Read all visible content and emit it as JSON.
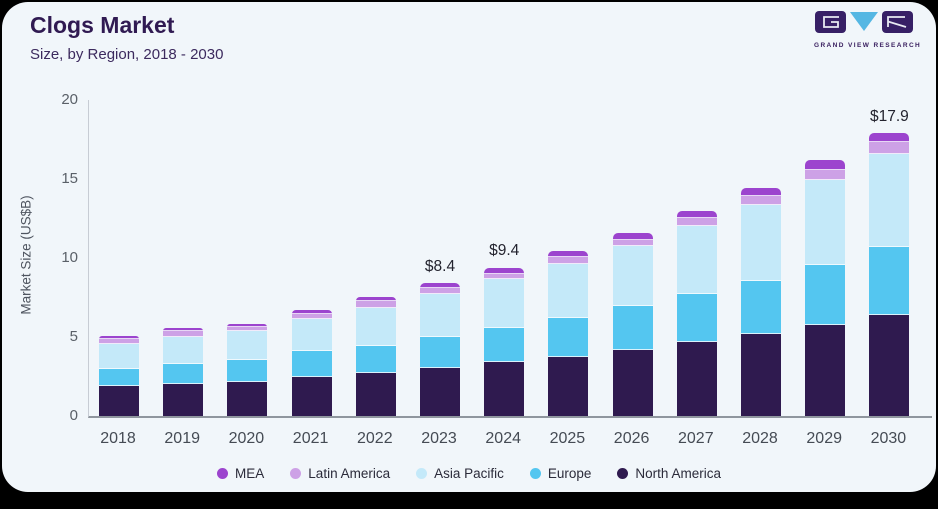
{
  "header": {
    "title": "Clogs Market",
    "subtitle": "Size, by Region, 2018 - 2030"
  },
  "logo": {
    "caption": "GRAND VIEW RESEARCH",
    "tile_color": "#372066",
    "triangle_color": "#55b7e3"
  },
  "colors": {
    "card_background": "#f1f6fa",
    "frame_background": "#000000",
    "title_text": "#301a52",
    "axis_line": "#c7ccd4",
    "baseline": "#8f969e",
    "tick_text": "#5a6068",
    "year_text": "#454b54",
    "annotation_text": "#23232e",
    "legend_text": "#2b2b3a"
  },
  "chart_data": {
    "type": "bar",
    "stacked": true,
    "title": "Clogs Market",
    "subtitle": "Size, by Region, 2018 - 2030",
    "xlabel": "",
    "ylabel": "Market Size (US$B)",
    "ylim": [
      0,
      20
    ],
    "yticks": [
      0,
      5,
      10,
      15,
      20
    ],
    "grid": false,
    "legend_position": "bottom-center",
    "categories": [
      "2018",
      "2019",
      "2020",
      "2021",
      "2022",
      "2023",
      "2024",
      "2025",
      "2026",
      "2027",
      "2028",
      "2029",
      "2030"
    ],
    "series": [
      {
        "name": "North America",
        "color": "#2f1a4f",
        "values": [
          1.9,
          2.0,
          2.15,
          2.5,
          2.75,
          3.05,
          3.4,
          3.75,
          4.2,
          4.7,
          5.2,
          5.75,
          6.4
        ]
      },
      {
        "name": "Europe",
        "color": "#54c6f0",
        "values": [
          1.1,
          1.3,
          1.4,
          1.6,
          1.7,
          1.95,
          2.2,
          2.45,
          2.75,
          3.05,
          3.35,
          3.8,
          4.3
        ]
      },
      {
        "name": "Asia Pacific",
        "color": "#c4e9f9",
        "values": [
          1.55,
          1.7,
          1.8,
          2.05,
          2.4,
          2.75,
          3.05,
          3.45,
          3.8,
          4.3,
          4.8,
          5.4,
          5.9
        ]
      },
      {
        "name": "Latin America",
        "color": "#cda1e6",
        "values": [
          0.3,
          0.35,
          0.3,
          0.3,
          0.4,
          0.35,
          0.35,
          0.4,
          0.4,
          0.5,
          0.55,
          0.6,
          0.75
        ]
      },
      {
        "name": "MEA",
        "color": "#9c44ce",
        "values": [
          0.2,
          0.2,
          0.2,
          0.25,
          0.3,
          0.3,
          0.4,
          0.4,
          0.45,
          0.45,
          0.55,
          0.65,
          0.55
        ]
      }
    ],
    "totals": [
      5.05,
      5.55,
      5.85,
      6.7,
      7.55,
      8.4,
      9.4,
      10.45,
      11.6,
      13.0,
      14.45,
      16.2,
      17.9
    ],
    "annotations": [
      {
        "category": "2023",
        "text": "$8.4"
      },
      {
        "category": "2024",
        "text": "$9.4"
      },
      {
        "category": "2030",
        "text": "$17.9"
      }
    ],
    "legend": [
      "MEA",
      "Latin America",
      "Asia Pacific",
      "Europe",
      "North America"
    ]
  }
}
